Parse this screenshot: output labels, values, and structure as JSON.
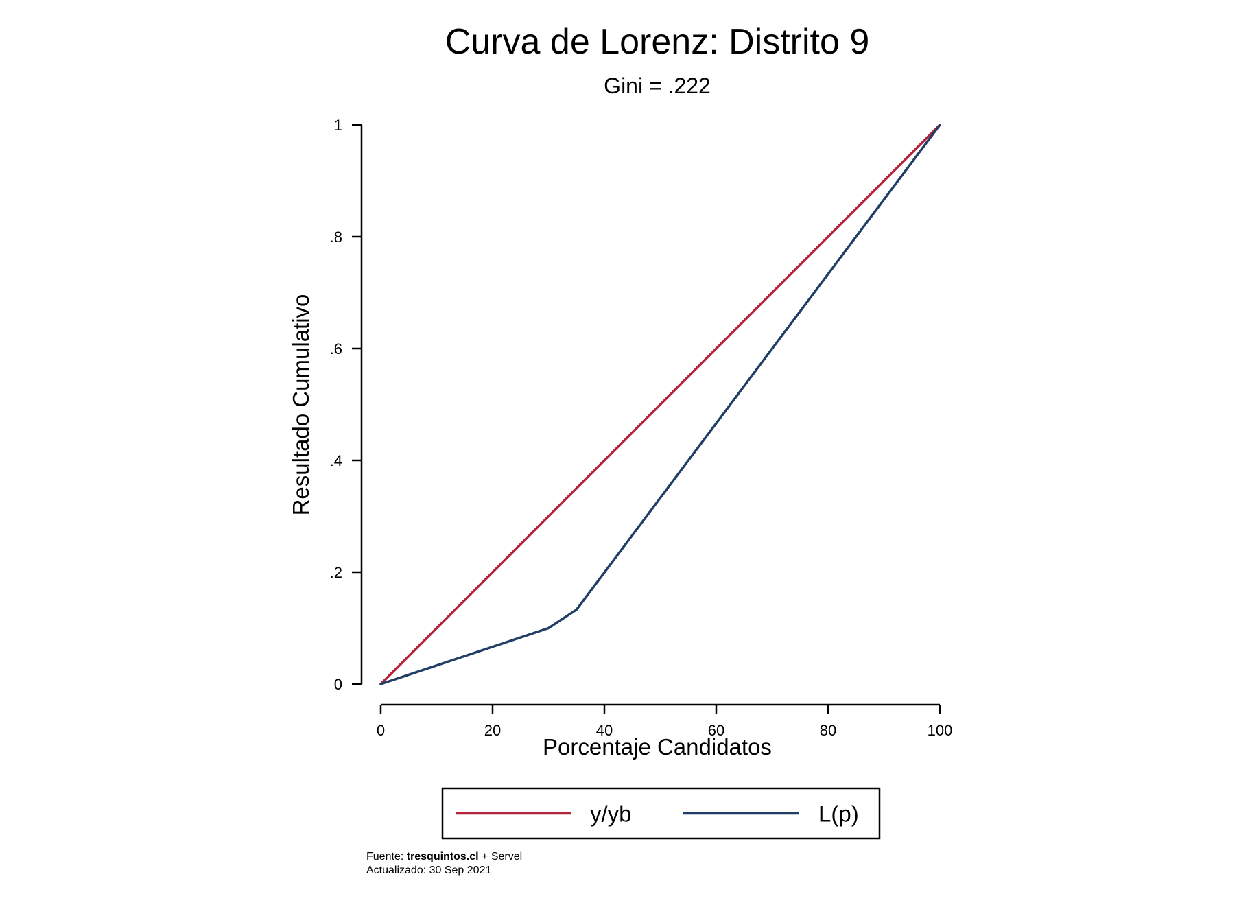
{
  "chart_data": {
    "type": "line",
    "title": "Curva de Lorenz: Distrito 9",
    "subtitle": "Gini = .222",
    "xlabel": "Porcentaje Candidatos",
    "ylabel": "Resultado Cumulativo",
    "xlim": [
      0,
      100
    ],
    "ylim": [
      0,
      1
    ],
    "x_ticks": [
      0,
      20,
      40,
      60,
      80,
      100
    ],
    "x_tick_labels": [
      "0",
      "20",
      "40",
      "60",
      "80",
      "100"
    ],
    "y_ticks": [
      0,
      0.2,
      0.4,
      0.6,
      0.8,
      1
    ],
    "y_tick_labels": [
      "0",
      ".2",
      ".4",
      ".6",
      ".8",
      "1"
    ],
    "grid": false,
    "legend_position": "bottom",
    "series": [
      {
        "name": "y/yb",
        "color": "#b5233a",
        "points": [
          [
            0,
            0
          ],
          [
            100,
            1
          ]
        ]
      },
      {
        "name": "L(p)",
        "color": "#213f66",
        "points": [
          [
            0,
            0
          ],
          [
            30,
            0.1
          ],
          [
            35,
            0.133
          ],
          [
            100,
            1
          ]
        ]
      }
    ]
  },
  "footer": {
    "source_prefix": "Fuente: ",
    "source_bold": "tresquintos.cl",
    "source_suffix": " + Servel",
    "updated": "Actualizado: 30 Sep 2021"
  }
}
